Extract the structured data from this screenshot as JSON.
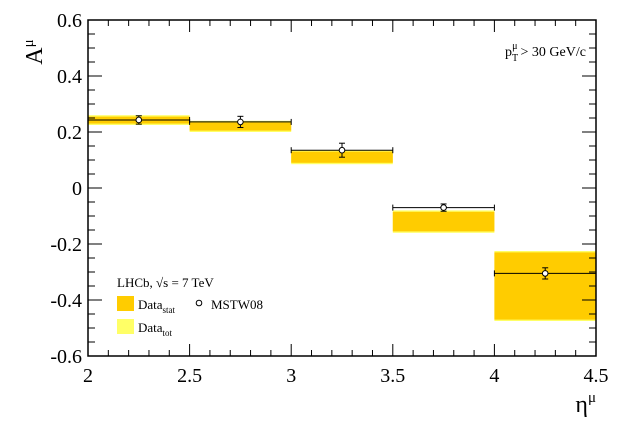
{
  "chart_data": {
    "type": "scatter",
    "ylabel": "A",
    "ylabel_sup": "μ",
    "xlabel": "η",
    "xlabel_sup": "μ",
    "xlim": [
      2.0,
      4.5
    ],
    "ylim": [
      -0.6,
      0.6
    ],
    "x_ticks": [
      2,
      2.5,
      3,
      3.5,
      4,
      4.5
    ],
    "x_tick_labels": [
      "2",
      "2.5",
      "3",
      "3.5",
      "4",
      "4.5"
    ],
    "y_ticks": [
      -0.6,
      -0.4,
      -0.2,
      0,
      0.2,
      0.4,
      0.6
    ],
    "y_tick_labels": [
      "-0.6",
      "-0.4",
      "-0.2",
      "0",
      "0.2",
      "0.4",
      "0.6"
    ],
    "grid": false,
    "annotation": {
      "prefix": "p",
      "sub": "T",
      "sup": "μ",
      "rest": "> 30 GeV/c"
    },
    "data_bins": [
      {
        "x_low": 2.0,
        "x_high": 2.5,
        "stat_low": 0.23,
        "stat_high": 0.255,
        "tot_low": 0.225,
        "tot_high": 0.26
      },
      {
        "x_low": 2.5,
        "x_high": 3.0,
        "stat_low": 0.205,
        "stat_high": 0.235,
        "tot_low": 0.2,
        "tot_high": 0.24
      },
      {
        "x_low": 3.0,
        "x_high": 3.5,
        "stat_low": 0.09,
        "stat_high": 0.13,
        "tot_low": 0.085,
        "tot_high": 0.135
      },
      {
        "x_low": 3.5,
        "x_high": 4.0,
        "stat_low": -0.155,
        "stat_high": -0.085,
        "tot_low": -0.16,
        "tot_high": -0.08
      },
      {
        "x_low": 4.0,
        "x_high": 4.5,
        "stat_low": -0.47,
        "stat_high": -0.23,
        "tot_low": -0.475,
        "tot_high": -0.225
      }
    ],
    "series": [
      {
        "name": "MSTW08",
        "marker": "open-circle",
        "points": [
          {
            "x": 2.25,
            "y": 0.243,
            "xerr": 0.25,
            "yerr": 0.015
          },
          {
            "x": 2.75,
            "y": 0.236,
            "xerr": 0.25,
            "yerr": 0.02
          },
          {
            "x": 3.25,
            "y": 0.135,
            "xerr": 0.25,
            "yerr": 0.025
          },
          {
            "x": 3.75,
            "y": -0.07,
            "xerr": 0.25,
            "yerr": 0.013
          },
          {
            "x": 4.25,
            "y": -0.305,
            "xerr": 0.25,
            "yerr": 0.02
          }
        ]
      }
    ],
    "legend": {
      "placement": "bottom-left",
      "header": "LHCb, √s = 7 TeV",
      "entries": [
        {
          "label": "Data",
          "sub": "stat",
          "color": "#ffcc00"
        },
        {
          "label": "MSTW08",
          "sub": "",
          "marker": "open-circle"
        },
        {
          "label": "Data",
          "sub": "tot",
          "color": "#ffff66"
        }
      ]
    },
    "colors": {
      "stat": "#ffcc00",
      "tot": "#ffff66",
      "marker": "#000000"
    }
  }
}
